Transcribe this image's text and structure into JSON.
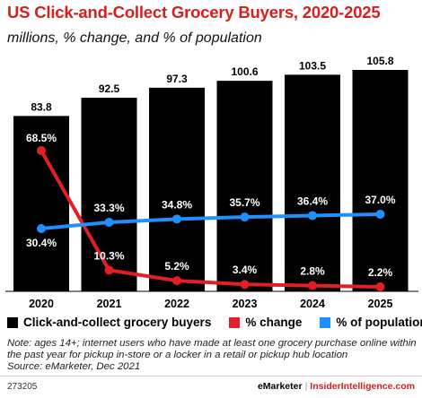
{
  "title": "US Click-and-Collect Grocery Buyers, 2020-2025",
  "subtitle": "millions, % change, and % of population",
  "colors": {
    "bars": "#000000",
    "change": "#e21f26",
    "population": "#1e90ff",
    "title": "#d6201f"
  },
  "chart_data": {
    "type": "bar",
    "categories": [
      "2020",
      "2021",
      "2022",
      "2023",
      "2024",
      "2025"
    ],
    "series": [
      {
        "name": "Click-and-collect grocery buyers",
        "type": "bar",
        "values": [
          83.8,
          92.5,
          97.3,
          100.6,
          103.5,
          105.8
        ],
        "labels": [
          "83.8",
          "92.5",
          "97.3",
          "100.6",
          "103.5",
          "105.8"
        ]
      },
      {
        "name": "% change",
        "type": "line",
        "values": [
          68.5,
          10.3,
          5.2,
          3.4,
          2.8,
          2.2
        ],
        "labels": [
          "68.5%",
          "10.3%",
          "5.2%",
          "3.4%",
          "2.8%",
          "2.2%"
        ]
      },
      {
        "name": "% of population",
        "type": "line",
        "values": [
          30.4,
          33.3,
          34.8,
          35.7,
          36.4,
          37.0
        ],
        "labels": [
          "30.4%",
          "33.3%",
          "34.8%",
          "35.7%",
          "36.4%",
          "37.0%"
        ]
      }
    ],
    "legend": "bottom",
    "grid": false
  },
  "legend": [
    {
      "label": "Click-and-collect grocery buyers",
      "color": "#000000"
    },
    {
      "label": "% change",
      "color": "#e21f26"
    },
    {
      "label": "% of population",
      "color": "#1e90ff"
    }
  ],
  "note": "Note: ages 14+; internet users who have made at least one grocery purchase online within the past year for pickup in-store or a locker in a retail or pickup hub location",
  "source": "Source: eMarketer, Dec 2021",
  "footer": {
    "id": "273205",
    "brand": "eMarketer",
    "separator": "|",
    "brand2": "InsiderIntelligence.com"
  }
}
